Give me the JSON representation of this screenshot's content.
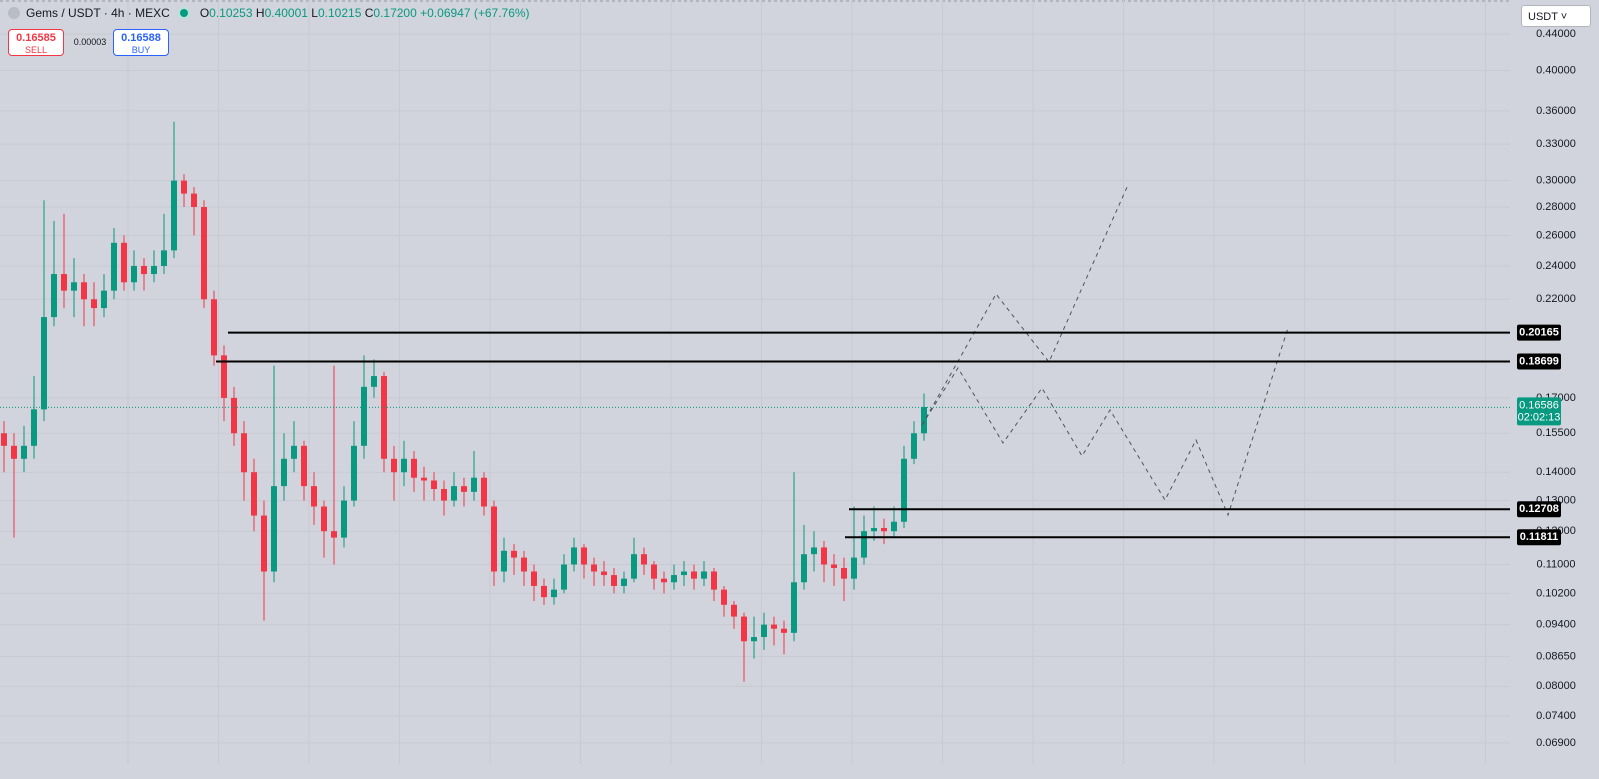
{
  "header": {
    "symbol": "Gems / USDT · 4h · MEXC",
    "o_label": "O",
    "o": "0.10253",
    "h_label": "H",
    "h": "0.40001",
    "l_label": "L",
    "l": "0.10215",
    "c_label": "C",
    "c": "0.17200",
    "change": "+0.06947 (+67.76%)",
    "sell_price": "0.16585",
    "sell": "SELL",
    "spread": "0.00003",
    "buy_price": "0.16588",
    "buy": "BUY",
    "currency": "USDT"
  },
  "chart_data": {
    "type": "candlestick",
    "log": true,
    "grid": true,
    "up_color": "#089981",
    "down_color": "#f23645",
    "ylim": [
      0.0653,
      0.481
    ],
    "yticks": [
      {
        "value": 0.44,
        "label": "0.44000"
      },
      {
        "value": 0.4,
        "label": "0.40000"
      },
      {
        "value": 0.36,
        "label": "0.36000"
      },
      {
        "value": 0.33,
        "label": "0.33000"
      },
      {
        "value": 0.3,
        "label": "0.30000"
      },
      {
        "value": 0.28,
        "label": "0.28000"
      },
      {
        "value": 0.26,
        "label": "0.26000"
      },
      {
        "value": 0.24,
        "label": "0.24000"
      },
      {
        "value": 0.22,
        "label": "0.22000"
      },
      {
        "value": 0.17,
        "label": "0.17000"
      },
      {
        "value": 0.155,
        "label": "0.15500"
      },
      {
        "value": 0.14,
        "label": "0.14000"
      },
      {
        "value": 0.13,
        "label": "0.13000"
      },
      {
        "value": 0.12,
        "label": "0.12000"
      },
      {
        "value": 0.11,
        "label": "0.11000"
      },
      {
        "value": 0.102,
        "label": "0.10200"
      },
      {
        "value": 0.094,
        "label": "0.09400"
      },
      {
        "value": 0.0865,
        "label": "0.08650"
      },
      {
        "value": 0.08,
        "label": "0.08000"
      },
      {
        "value": 0.074,
        "label": "0.07400"
      },
      {
        "value": 0.069,
        "label": "0.06900"
      }
    ],
    "levels": [
      0.20165,
      0.18699,
      0.12708,
      0.11811
    ],
    "current_price": 0.16586,
    "countdown": "02:02:13",
    "candles": [
      [
        0.155,
        0.16,
        0.14,
        0.15
      ],
      [
        0.15,
        0.155,
        0.118,
        0.145
      ],
      [
        0.145,
        0.158,
        0.14,
        0.15
      ],
      [
        0.15,
        0.18,
        0.145,
        0.165
      ],
      [
        0.165,
        0.285,
        0.16,
        0.21
      ],
      [
        0.21,
        0.27,
        0.205,
        0.235
      ],
      [
        0.235,
        0.275,
        0.215,
        0.225
      ],
      [
        0.225,
        0.245,
        0.21,
        0.23
      ],
      [
        0.23,
        0.235,
        0.205,
        0.22
      ],
      [
        0.22,
        0.23,
        0.205,
        0.215
      ],
      [
        0.215,
        0.235,
        0.21,
        0.225
      ],
      [
        0.225,
        0.265,
        0.22,
        0.255
      ],
      [
        0.255,
        0.26,
        0.225,
        0.23
      ],
      [
        0.23,
        0.25,
        0.225,
        0.24
      ],
      [
        0.24,
        0.245,
        0.225,
        0.235
      ],
      [
        0.235,
        0.25,
        0.23,
        0.24
      ],
      [
        0.24,
        0.275,
        0.235,
        0.25
      ],
      [
        0.25,
        0.35,
        0.245,
        0.3
      ],
      [
        0.3,
        0.305,
        0.28,
        0.29
      ],
      [
        0.29,
        0.295,
        0.26,
        0.28
      ],
      [
        0.28,
        0.285,
        0.215,
        0.22
      ],
      [
        0.22,
        0.225,
        0.185,
        0.19
      ],
      [
        0.19,
        0.195,
        0.16,
        0.17
      ],
      [
        0.17,
        0.175,
        0.15,
        0.155
      ],
      [
        0.155,
        0.16,
        0.13,
        0.14
      ],
      [
        0.14,
        0.145,
        0.12,
        0.125
      ],
      [
        0.125,
        0.13,
        0.095,
        0.108
      ],
      [
        0.108,
        0.185,
        0.105,
        0.135
      ],
      [
        0.135,
        0.155,
        0.13,
        0.145
      ],
      [
        0.145,
        0.16,
        0.14,
        0.15
      ],
      [
        0.15,
        0.152,
        0.13,
        0.135
      ],
      [
        0.135,
        0.14,
        0.122,
        0.128
      ],
      [
        0.128,
        0.13,
        0.112,
        0.12
      ],
      [
        0.12,
        0.185,
        0.11,
        0.118
      ],
      [
        0.118,
        0.135,
        0.115,
        0.13
      ],
      [
        0.13,
        0.16,
        0.128,
        0.15
      ],
      [
        0.15,
        0.19,
        0.145,
        0.175
      ],
      [
        0.175,
        0.188,
        0.17,
        0.18
      ],
      [
        0.18,
        0.182,
        0.14,
        0.145
      ],
      [
        0.145,
        0.15,
        0.13,
        0.14
      ],
      [
        0.14,
        0.152,
        0.135,
        0.145
      ],
      [
        0.145,
        0.148,
        0.133,
        0.138
      ],
      [
        0.138,
        0.142,
        0.13,
        0.137
      ],
      [
        0.137,
        0.14,
        0.13,
        0.134
      ],
      [
        0.134,
        0.137,
        0.125,
        0.13
      ],
      [
        0.13,
        0.14,
        0.128,
        0.135
      ],
      [
        0.135,
        0.138,
        0.128,
        0.133
      ],
      [
        0.133,
        0.148,
        0.13,
        0.138
      ],
      [
        0.138,
        0.14,
        0.125,
        0.128
      ],
      [
        0.128,
        0.13,
        0.104,
        0.108
      ],
      [
        0.108,
        0.118,
        0.105,
        0.114
      ],
      [
        0.114,
        0.116,
        0.107,
        0.112
      ],
      [
        0.112,
        0.114,
        0.104,
        0.108
      ],
      [
        0.108,
        0.11,
        0.1,
        0.104
      ],
      [
        0.104,
        0.106,
        0.099,
        0.101
      ],
      [
        0.101,
        0.106,
        0.099,
        0.103
      ],
      [
        0.103,
        0.113,
        0.102,
        0.11
      ],
      [
        0.11,
        0.118,
        0.108,
        0.115
      ],
      [
        0.115,
        0.116,
        0.106,
        0.11
      ],
      [
        0.11,
        0.112,
        0.104,
        0.108
      ],
      [
        0.108,
        0.111,
        0.104,
        0.107
      ],
      [
        0.107,
        0.109,
        0.102,
        0.104
      ],
      [
        0.104,
        0.108,
        0.102,
        0.106
      ],
      [
        0.106,
        0.118,
        0.105,
        0.113
      ],
      [
        0.113,
        0.115,
        0.107,
        0.11
      ],
      [
        0.11,
        0.111,
        0.103,
        0.106
      ],
      [
        0.106,
        0.108,
        0.102,
        0.105
      ],
      [
        0.105,
        0.11,
        0.103,
        0.107
      ],
      [
        0.107,
        0.111,
        0.104,
        0.108
      ],
      [
        0.108,
        0.11,
        0.103,
        0.106
      ],
      [
        0.106,
        0.111,
        0.104,
        0.108
      ],
      [
        0.108,
        0.109,
        0.1,
        0.103
      ],
      [
        0.103,
        0.104,
        0.096,
        0.099
      ],
      [
        0.099,
        0.1,
        0.093,
        0.096
      ],
      [
        0.096,
        0.097,
        0.081,
        0.09
      ],
      [
        0.09,
        0.096,
        0.086,
        0.091
      ],
      [
        0.091,
        0.097,
        0.088,
        0.094
      ],
      [
        0.094,
        0.096,
        0.089,
        0.093
      ],
      [
        0.093,
        0.095,
        0.087,
        0.092
      ],
      [
        0.092,
        0.14,
        0.09,
        0.105
      ],
      [
        0.105,
        0.122,
        0.103,
        0.113
      ],
      [
        0.113,
        0.12,
        0.108,
        0.115
      ],
      [
        0.115,
        0.117,
        0.105,
        0.11
      ],
      [
        0.11,
        0.113,
        0.104,
        0.109
      ],
      [
        0.109,
        0.112,
        0.1,
        0.106
      ],
      [
        0.106,
        0.128,
        0.103,
        0.112
      ],
      [
        0.112,
        0.125,
        0.11,
        0.12
      ],
      [
        0.12,
        0.128,
        0.117,
        0.121
      ],
      [
        0.121,
        0.124,
        0.116,
        0.12
      ],
      [
        0.12,
        0.128,
        0.118,
        0.123
      ],
      [
        0.123,
        0.15,
        0.121,
        0.145
      ],
      [
        0.145,
        0.16,
        0.143,
        0.155
      ],
      [
        0.155,
        0.172,
        0.152,
        0.166
      ]
    ]
  }
}
